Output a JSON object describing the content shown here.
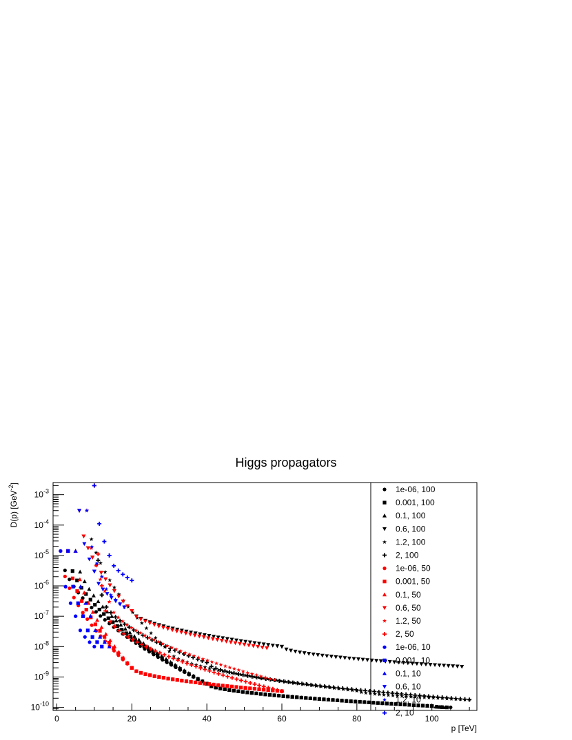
{
  "chart_data": {
    "type": "scatter",
    "title": "Higgs propagators",
    "xlabel": "p [TeV]",
    "ylabel_base": "D(p) [GeV",
    "ylabel_exp": "-2",
    "ylabel_close": "]",
    "xlim": [
      -1,
      112
    ],
    "ylim_log10": [
      -10.1,
      -2.6
    ],
    "log_y": true,
    "legend_position": "right",
    "x_ticks": [
      "0",
      "20",
      "40",
      "60",
      "80",
      "100"
    ],
    "y_ticks": [
      {
        "base": "10",
        "exp": "-3"
      },
      {
        "base": "10",
        "exp": "-4"
      },
      {
        "base": "10",
        "exp": "-5"
      },
      {
        "base": "10",
        "exp": "-6"
      },
      {
        "base": "10",
        "exp": "-7"
      },
      {
        "base": "10",
        "exp": "-8"
      },
      {
        "base": "10",
        "exp": "-9"
      },
      {
        "base": "10",
        "exp": "-10"
      }
    ],
    "colors": {
      "100": "#000000",
      "50": "#ff0000",
      "10": "#0000ff"
    },
    "series": [
      {
        "name": "1e-06, 100",
        "color": "#000000",
        "marker": "circle",
        "x": [
          1,
          40,
          100,
          105
        ],
        "y": [
          1.4e-05,
          6e-10,
          1.1e-10,
          1e-10
        ]
      },
      {
        "name": "0.001, 100",
        "color": "#000000",
        "marker": "square",
        "x": [
          3,
          40,
          100,
          104
        ],
        "y": [
          1.4e-05,
          6e-10,
          1.1e-10,
          1e-10
        ]
      },
      {
        "name": "0.1, 100",
        "color": "#000000",
        "marker": "triangle-up",
        "x": [
          5,
          40,
          100,
          103
        ],
        "y": [
          1.4e-05,
          6e-10,
          1.1e-10,
          1e-10
        ]
      },
      {
        "name": "0.6, 100",
        "color": "#000000",
        "marker": "triangle-down",
        "x": [
          6,
          20,
          60,
          108
        ],
        "y": [
          0.0003,
          1.5e-07,
          1e-08,
          2.2e-09
        ]
      },
      {
        "name": "1.2, 100",
        "color": "#000000",
        "marker": "star",
        "x": [
          8,
          30,
          80,
          110
        ],
        "y": [
          0.0003,
          7e-09,
          3.5e-10,
          1.8e-10
        ]
      },
      {
        "name": "2, 100",
        "color": "#000000",
        "marker": "cross",
        "x": [
          10,
          12,
          40,
          110
        ],
        "y": [
          0.002,
          5e-07,
          3e-09,
          1.8e-10
        ]
      },
      {
        "name": "1e-06, 50",
        "color": "#ff0000",
        "marker": "circle",
        "x": [
          1,
          20,
          60
        ],
        "y": [
          1.4e-05,
          2e-09,
          3.4e-10
        ]
      },
      {
        "name": "0.001, 50",
        "color": "#ff0000",
        "marker": "square",
        "x": [
          3,
          20,
          60
        ],
        "y": [
          1.4e-05,
          2e-09,
          3.4e-10
        ]
      },
      {
        "name": "0.1, 50",
        "color": "#ff0000",
        "marker": "triangle-up",
        "x": [
          5,
          20,
          60
        ],
        "y": [
          1.4e-05,
          2e-09,
          3.4e-10
        ]
      },
      {
        "name": "0.6, 50",
        "color": "#ff0000",
        "marker": "triangle-down",
        "x": [
          6,
          20,
          56
        ],
        "y": [
          0.0003,
          1.5e-07,
          9e-09
        ]
      },
      {
        "name": "1.2, 50",
        "color": "#ff0000",
        "marker": "star",
        "x": [
          8,
          14,
          58
        ],
        "y": [
          0.0003,
          3e-07,
          8e-10
        ]
      },
      {
        "name": "2, 50",
        "color": "#ff0000",
        "marker": "cross",
        "x": [
          10,
          13,
          60
        ],
        "y": [
          0.002,
          1.5e-07,
          3.4e-10
        ]
      },
      {
        "name": "1e-06, 10",
        "color": "#0000ff",
        "marker": "circle",
        "x": [
          1,
          5,
          10
        ],
        "y": [
          1.4e-05,
          1e-07,
          1e-08
        ]
      },
      {
        "name": "0.001, 10",
        "color": "#0000ff",
        "marker": "square",
        "x": [
          3,
          7,
          12
        ],
        "y": [
          1.4e-05,
          1e-07,
          1e-08
        ]
      },
      {
        "name": "0.1, 10",
        "color": "#0000ff",
        "marker": "triangle-up",
        "x": [
          5,
          9,
          14
        ],
        "y": [
          1.4e-05,
          1e-07,
          1e-08
        ]
      },
      {
        "name": "0.6, 10",
        "color": "#0000ff",
        "marker": "triangle-down",
        "x": [
          6,
          10,
          18
        ],
        "y": [
          0.0003,
          3e-06,
          2e-07
        ]
      },
      {
        "name": "1.2, 10",
        "color": "#0000ff",
        "marker": "star",
        "x": [
          8,
          12,
          18
        ],
        "y": [
          0.0003,
          2e-06,
          2e-07
        ]
      },
      {
        "name": "2, 10",
        "color": "#0000ff",
        "marker": "cross",
        "x": [
          10,
          14,
          20
        ],
        "y": [
          0.002,
          1e-05,
          1.5e-06
        ]
      }
    ]
  }
}
